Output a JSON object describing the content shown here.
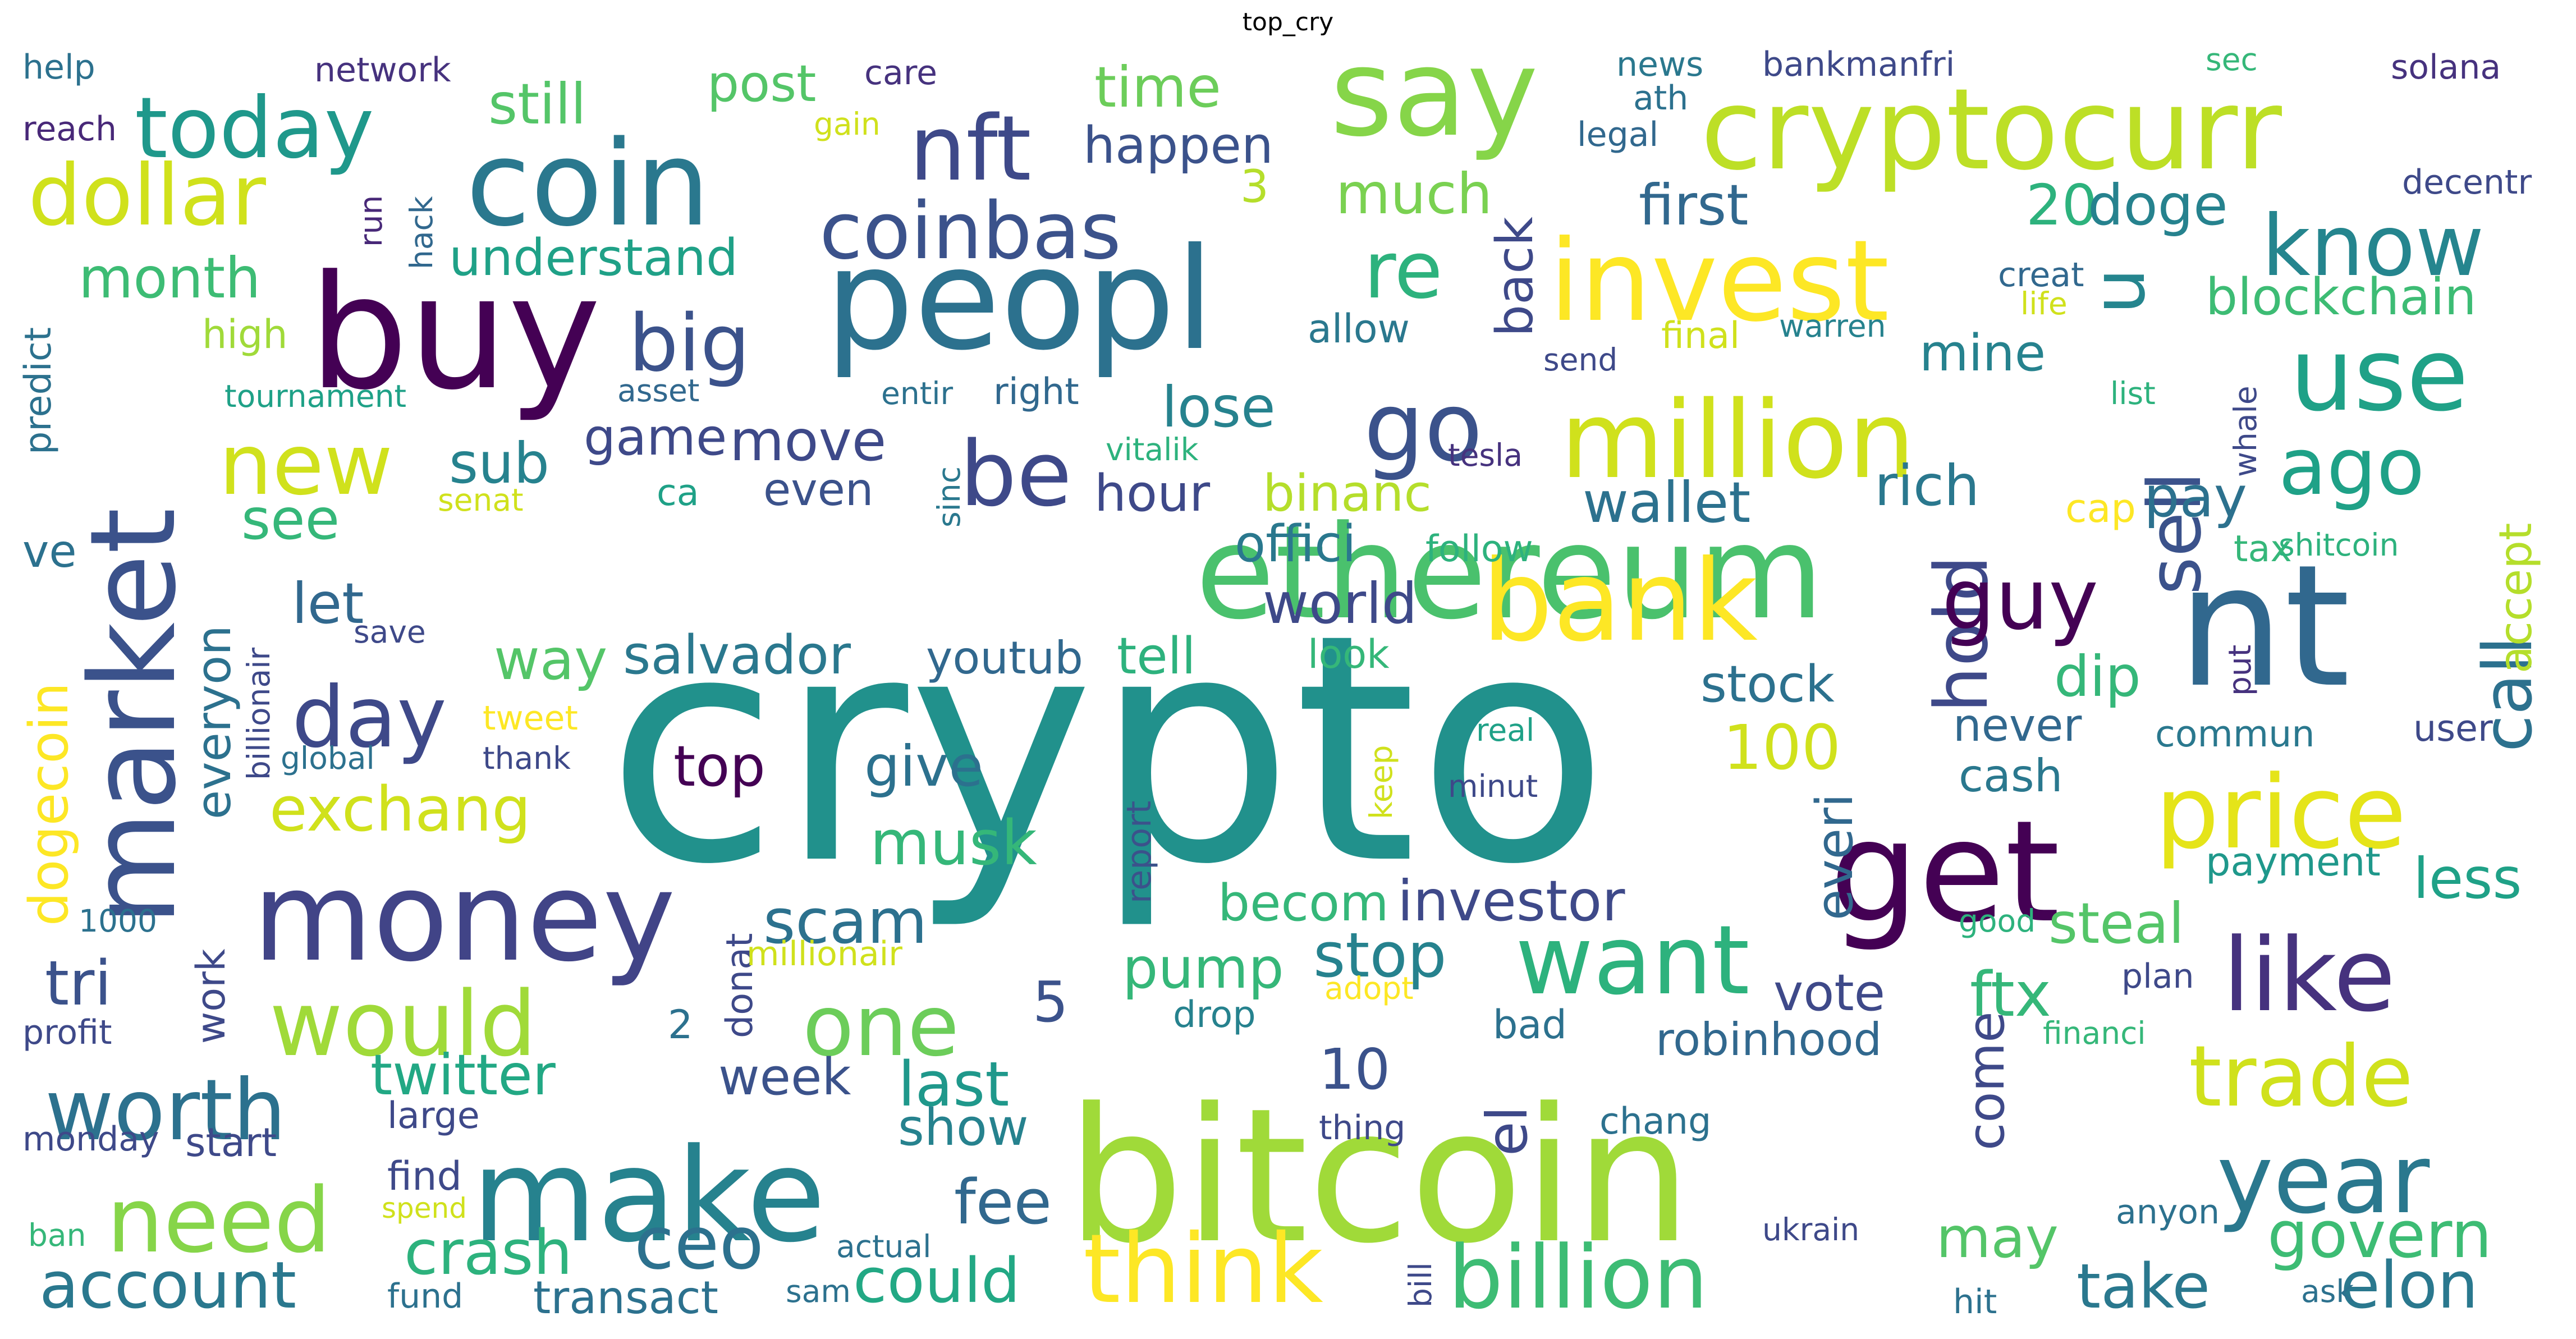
{
  "title": "top_cry",
  "colors": {
    "background": "#ffffff",
    "title": "#000000"
  },
  "words": [
    {
      "text": "crypto",
      "color": "#21918c"
    },
    {
      "text": "bitcoin",
      "color": "#a0da39"
    },
    {
      "text": "nt",
      "color": "#31688e"
    },
    {
      "text": "ethereum",
      "color": "#4ac16d"
    },
    {
      "text": "buy",
      "color": "#440154"
    },
    {
      "text": "peopl",
      "color": "#2c718e"
    },
    {
      "text": "cryptocurr",
      "color": "#bddf26"
    },
    {
      "text": "say",
      "color": "#86d549"
    },
    {
      "text": "market",
      "color": "#3b528b"
    },
    {
      "text": "money",
      "color": "#414487"
    },
    {
      "text": "make",
      "color": "#26828e"
    },
    {
      "text": "coin",
      "color": "#2a788e"
    },
    {
      "text": "get",
      "color": "#440154"
    },
    {
      "text": "bank",
      "color": "#fde725"
    },
    {
      "text": "invest",
      "color": "#fde725"
    },
    {
      "text": "million",
      "color": "#d0e11c"
    },
    {
      "text": "price",
      "color": "#e5e419"
    },
    {
      "text": "like",
      "color": "#46327e"
    },
    {
      "text": "want",
      "color": "#2db27d"
    },
    {
      "text": "use",
      "color": "#1fa187"
    },
    {
      "text": "year",
      "color": "#2a788e"
    },
    {
      "text": "think",
      "color": "#fde725"
    },
    {
      "text": "billion",
      "color": "#3dbc74"
    },
    {
      "text": "go",
      "color": "#3b528b"
    },
    {
      "text": "one",
      "color": "#6ccd5a"
    },
    {
      "text": "would",
      "color": "#a0da39"
    },
    {
      "text": "need",
      "color": "#86d549"
    },
    {
      "text": "worth",
      "color": "#2c718e"
    },
    {
      "text": "today",
      "color": "#1f988b"
    },
    {
      "text": "dollar",
      "color": "#d0e11c"
    },
    {
      "text": "nft",
      "color": "#3e4989"
    },
    {
      "text": "day",
      "color": "#3e4989"
    },
    {
      "text": "new",
      "color": "#d0e11c"
    },
    {
      "text": "hold",
      "color": "#3e4989"
    },
    {
      "text": "guy",
      "color": "#440154"
    },
    {
      "text": "sell",
      "color": "#3b528b"
    },
    {
      "text": "call",
      "color": "#2c718e"
    },
    {
      "text": "know",
      "color": "#25858e"
    },
    {
      "text": "ago",
      "color": "#1fa187"
    },
    {
      "text": "trade",
      "color": "#d0e11c"
    },
    {
      "text": "be",
      "color": "#3e4989"
    },
    {
      "text": "big",
      "color": "#3b528b"
    },
    {
      "text": "coinbas",
      "color": "#3b528b"
    },
    {
      "text": "re",
      "color": "#2db27d"
    },
    {
      "text": "u",
      "color": "#25858e"
    },
    {
      "text": "ceo",
      "color": "#2c718e"
    },
    {
      "text": "account",
      "color": "#2a788e"
    },
    {
      "text": "govern",
      "color": "#3dbc74"
    },
    {
      "text": "elon",
      "color": "#2a788e"
    },
    {
      "text": "take",
      "color": "#2a788e"
    },
    {
      "text": "exchang",
      "color": "#d0e11c"
    },
    {
      "text": "month",
      "color": "#3dbc74"
    },
    {
      "text": "time",
      "color": "#6ccd5a"
    },
    {
      "text": "happen",
      "color": "#3b528b"
    },
    {
      "text": "much",
      "color": "#7ad151"
    },
    {
      "text": "first",
      "color": "#31688e"
    },
    {
      "text": "20",
      "color": "#2db27d"
    },
    {
      "text": "doge",
      "color": "#26828e"
    },
    {
      "text": "blockchain",
      "color": "#3dbc74"
    },
    {
      "text": "still",
      "color": "#54c568"
    },
    {
      "text": "post",
      "color": "#54c568"
    },
    {
      "text": "understand",
      "color": "#1fa187"
    },
    {
      "text": "mine",
      "color": "#26828e"
    },
    {
      "text": "lose",
      "color": "#26828e"
    },
    {
      "text": "move",
      "color": "#3e4989"
    },
    {
      "text": "game",
      "color": "#3e4989"
    },
    {
      "text": "sub",
      "color": "#26828e"
    },
    {
      "text": "hour",
      "color": "#3e4989"
    },
    {
      "text": "binanc",
      "color": "#b5de2b"
    },
    {
      "text": "wallet",
      "color": "#2c718e"
    },
    {
      "text": "rich",
      "color": "#2a788e"
    },
    {
      "text": "pay",
      "color": "#2c718e"
    },
    {
      "text": "see",
      "color": "#35b779"
    },
    {
      "text": "even",
      "color": "#3b528b"
    },
    {
      "text": "offici",
      "color": "#2a788e"
    },
    {
      "text": "world",
      "color": "#3e4989"
    },
    {
      "text": "let",
      "color": "#31688e"
    },
    {
      "text": "way",
      "color": "#54c568"
    },
    {
      "text": "salvador",
      "color": "#2a788e"
    },
    {
      "text": "youtub",
      "color": "#31688e"
    },
    {
      "text": "tell",
      "color": "#2db27d"
    },
    {
      "text": "stock",
      "color": "#2c718e"
    },
    {
      "text": "dip",
      "color": "#35b779"
    },
    {
      "text": "never",
      "color": "#31688e"
    },
    {
      "text": "100",
      "color": "#d0e11c"
    },
    {
      "text": "top",
      "color": "#440154"
    },
    {
      "text": "give",
      "color": "#2c718e"
    },
    {
      "text": "musk",
      "color": "#35b779"
    },
    {
      "text": "scam",
      "color": "#2c718e"
    },
    {
      "text": "becom",
      "color": "#35b779"
    },
    {
      "text": "investor",
      "color": "#3e4989"
    },
    {
      "text": "everi",
      "color": "#31688e"
    },
    {
      "text": "cash",
      "color": "#2a788e"
    },
    {
      "text": "payment",
      "color": "#1f988b"
    },
    {
      "text": "less",
      "color": "#1fa187"
    },
    {
      "text": "steal",
      "color": "#54c568"
    },
    {
      "text": "stop",
      "color": "#26828e"
    },
    {
      "text": "pump",
      "color": "#35b779"
    },
    {
      "text": "5",
      "color": "#3b528b"
    },
    {
      "text": "ftx",
      "color": "#35b779"
    },
    {
      "text": "vote",
      "color": "#3e4989"
    },
    {
      "text": "robinhood",
      "color": "#31688e"
    },
    {
      "text": "tri",
      "color": "#3b528b"
    },
    {
      "text": "twitter",
      "color": "#22a884"
    },
    {
      "text": "week",
      "color": "#3b528b"
    },
    {
      "text": "last",
      "color": "#1f988b"
    },
    {
      "text": "show",
      "color": "#26828e"
    },
    {
      "text": "10",
      "color": "#3b528b"
    },
    {
      "text": "fee",
      "color": "#31688e"
    },
    {
      "text": "crash",
      "color": "#2db27d"
    },
    {
      "text": "could",
      "color": "#22a884"
    },
    {
      "text": "transact",
      "color": "#2c718e"
    },
    {
      "text": "may",
      "color": "#54c568"
    },
    {
      "text": "come",
      "color": "#3e4989"
    },
    {
      "text": "el",
      "color": "#3e4989"
    },
    {
      "text": "help",
      "color": "#2c718e"
    },
    {
      "text": "network",
      "color": "#46327e"
    },
    {
      "text": "care",
      "color": "#46327e"
    },
    {
      "text": "news",
      "color": "#2a788e"
    },
    {
      "text": "bankmanfri",
      "color": "#3e4989"
    },
    {
      "text": "sec",
      "color": "#35b779"
    },
    {
      "text": "solana",
      "color": "#46327e"
    },
    {
      "text": "reach",
      "color": "#482878"
    },
    {
      "text": "gain",
      "color": "#d0e11c"
    },
    {
      "text": "ath",
      "color": "#2c718e"
    },
    {
      "text": "legal",
      "color": "#31688e"
    },
    {
      "text": "decentr",
      "color": "#3e4989"
    },
    {
      "text": "3",
      "color": "#b5de2b"
    },
    {
      "text": "back",
      "color": "#3e4989"
    },
    {
      "text": "creat",
      "color": "#31688e"
    },
    {
      "text": "life",
      "color": "#d0e11c"
    },
    {
      "text": "run",
      "color": "#482878"
    },
    {
      "text": "hack",
      "color": "#31688e"
    },
    {
      "text": "predict",
      "color": "#2c718e"
    },
    {
      "text": "high",
      "color": "#a0da39"
    },
    {
      "text": "allow",
      "color": "#2a788e"
    },
    {
      "text": "final",
      "color": "#d0e11c"
    },
    {
      "text": "warren",
      "color": "#26828e"
    },
    {
      "text": "send",
      "color": "#3e4989"
    },
    {
      "text": "asset",
      "color": "#31688e"
    },
    {
      "text": "entir",
      "color": "#2c718e"
    },
    {
      "text": "right",
      "color": "#31688e"
    },
    {
      "text": "tournament",
      "color": "#1fa187"
    },
    {
      "text": "list",
      "color": "#2db27d"
    },
    {
      "text": "whale",
      "color": "#3e4989"
    },
    {
      "text": "accept",
      "color": "#b5de2b"
    },
    {
      "text": "tesla",
      "color": "#46327e"
    },
    {
      "text": "vitalik",
      "color": "#2db27d"
    },
    {
      "text": "sinc",
      "color": "#2a788e"
    },
    {
      "text": "ve",
      "color": "#2c718e"
    },
    {
      "text": "senat",
      "color": "#d0e11c"
    },
    {
      "text": "ca",
      "color": "#1fa187"
    },
    {
      "text": "cap",
      "color": "#fde725"
    },
    {
      "text": "follow",
      "color": "#2db27d"
    },
    {
      "text": "tax",
      "color": "#35b779"
    },
    {
      "text": "shitcoin",
      "color": "#2db27d"
    },
    {
      "text": "dogecoin",
      "color": "#fde725"
    },
    {
      "text": "everyon",
      "color": "#2c718e"
    },
    {
      "text": "billionair",
      "color": "#3e4989"
    },
    {
      "text": "save",
      "color": "#3e4989"
    },
    {
      "text": "look",
      "color": "#35b779"
    },
    {
      "text": "put",
      "color": "#46327e"
    },
    {
      "text": "tweet",
      "color": "#fde725"
    },
    {
      "text": "global",
      "color": "#2c718e"
    },
    {
      "text": "thank",
      "color": "#3e4989"
    },
    {
      "text": "real",
      "color": "#1fa187"
    },
    {
      "text": "minut",
      "color": "#3e4989"
    },
    {
      "text": "keep",
      "color": "#d0e11c"
    },
    {
      "text": "commun",
      "color": "#2a788e"
    },
    {
      "text": "user",
      "color": "#3e4989"
    },
    {
      "text": "report",
      "color": "#3b528b"
    },
    {
      "text": "1000",
      "color": "#2c718e"
    },
    {
      "text": "work",
      "color": "#3e4989"
    },
    {
      "text": "donat",
      "color": "#3e4989"
    },
    {
      "text": "millionair",
      "color": "#d0e11c"
    },
    {
      "text": "good",
      "color": "#2db27d"
    },
    {
      "text": "adopt",
      "color": "#fde725"
    },
    {
      "text": "plan",
      "color": "#3e4989"
    },
    {
      "text": "2",
      "color": "#2c718e"
    },
    {
      "text": "profit",
      "color": "#3e4989"
    },
    {
      "text": "drop",
      "color": "#26828e"
    },
    {
      "text": "bad",
      "color": "#2c718e"
    },
    {
      "text": "financi",
      "color": "#35b779"
    },
    {
      "text": "large",
      "color": "#3e4989"
    },
    {
      "text": "chang",
      "color": "#2c718e"
    },
    {
      "text": "thing",
      "color": "#3e4989"
    },
    {
      "text": "monday",
      "color": "#3e4989"
    },
    {
      "text": "start",
      "color": "#3e4989"
    },
    {
      "text": "find",
      "color": "#3e4989"
    },
    {
      "text": "spend",
      "color": "#d0e11c"
    },
    {
      "text": "ban",
      "color": "#35b779"
    },
    {
      "text": "actual",
      "color": "#2c718e"
    },
    {
      "text": "anyon",
      "color": "#2c718e"
    },
    {
      "text": "ukrain",
      "color": "#3e4989"
    },
    {
      "text": "bill",
      "color": "#3e4989"
    },
    {
      "text": "fund",
      "color": "#2c718e"
    },
    {
      "text": "sam",
      "color": "#2c718e"
    },
    {
      "text": "hit",
      "color": "#2c718e"
    },
    {
      "text": "ask",
      "color": "#2c718e"
    }
  ]
}
